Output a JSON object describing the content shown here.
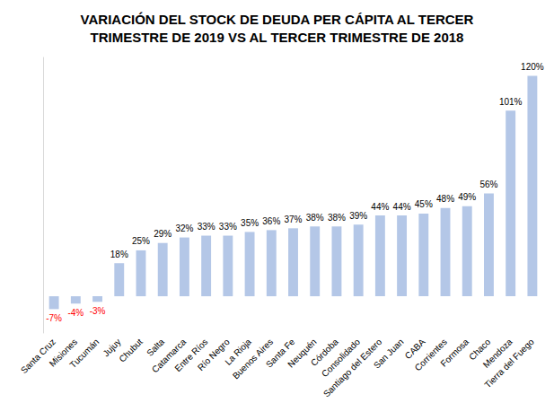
{
  "chart_data": {
    "type": "bar",
    "title": "VARIACIÓN DEL STOCK DE DEUDA PER CÁPITA AL TERCER\nTRIMESTRE DE 2019 VS AL TERCER TRIMESTRE DE 2018",
    "categories": [
      "Santa Cruz",
      "Misiones",
      "Tucumán",
      "Jujuy",
      "Chubut",
      "Salta",
      "Catamarca",
      "Entre Ríos",
      "Río Negro",
      "La Rioja",
      "Buenos Aires",
      "Santa Fe",
      "Neuquén",
      "Córdoba",
      "Consolidado",
      "Santiago del Estero",
      "San Juan",
      "CABA",
      "Corrientes",
      "Formosa",
      "Chaco",
      "Mendoza",
      "Tierra del Fuego"
    ],
    "values": [
      -7,
      -4,
      -3,
      18,
      25,
      29,
      32,
      33,
      33,
      35,
      36,
      37,
      38,
      38,
      39,
      44,
      44,
      45,
      48,
      49,
      56,
      101,
      120
    ],
    "value_labels": [
      "-7%",
      "-4%",
      "-3%",
      "18%",
      "25%",
      "29%",
      "32%",
      "33%",
      "33%",
      "35%",
      "36%",
      "37%",
      "38%",
      "38%",
      "39%",
      "44%",
      "44%",
      "45%",
      "48%",
      "49%",
      "56%",
      "101%",
      "120%"
    ],
    "color": "#b4c7e7",
    "ylim": [
      -20,
      130
    ],
    "grid": false,
    "data_labels": true,
    "tick_labels": "x"
  }
}
